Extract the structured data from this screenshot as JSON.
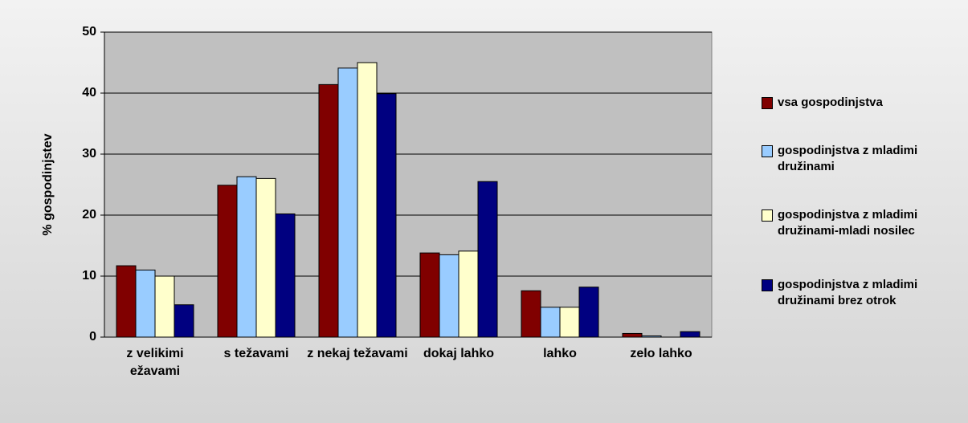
{
  "chart_data": {
    "type": "bar",
    "y_label": "% gospodinjstev",
    "categories": [
      "z velikimi ežavami",
      "s težavami",
      "z nekaj težavami",
      "dokaj lahko",
      "lahko",
      "zelo lahko"
    ],
    "series": [
      {
        "name": "vsa gospodinjstva",
        "color": "#800000",
        "values": [
          11.7,
          24.9,
          41.4,
          13.8,
          7.6,
          0.6
        ]
      },
      {
        "name": "gospodinjstva z mladimi družinami",
        "color": "#99ccff",
        "values": [
          11.0,
          26.3,
          44.1,
          13.5,
          4.9,
          0.2
        ]
      },
      {
        "name": "gospodinjstva z mladimi družinami-mladi nosilec",
        "color": "#ffffcc",
        "values": [
          10.0,
          26.0,
          45.0,
          14.1,
          4.9,
          0.0
        ]
      },
      {
        "name": "gospodinjstva z mladimi družinami brez otrok",
        "color": "#000080",
        "values": [
          5.3,
          20.2,
          39.9,
          25.5,
          8.2,
          0.9
        ]
      }
    ],
    "ylim": [
      0,
      50
    ],
    "yticks": [
      0,
      10,
      20,
      30,
      40,
      50
    ],
    "grid": true,
    "legend": "right"
  }
}
